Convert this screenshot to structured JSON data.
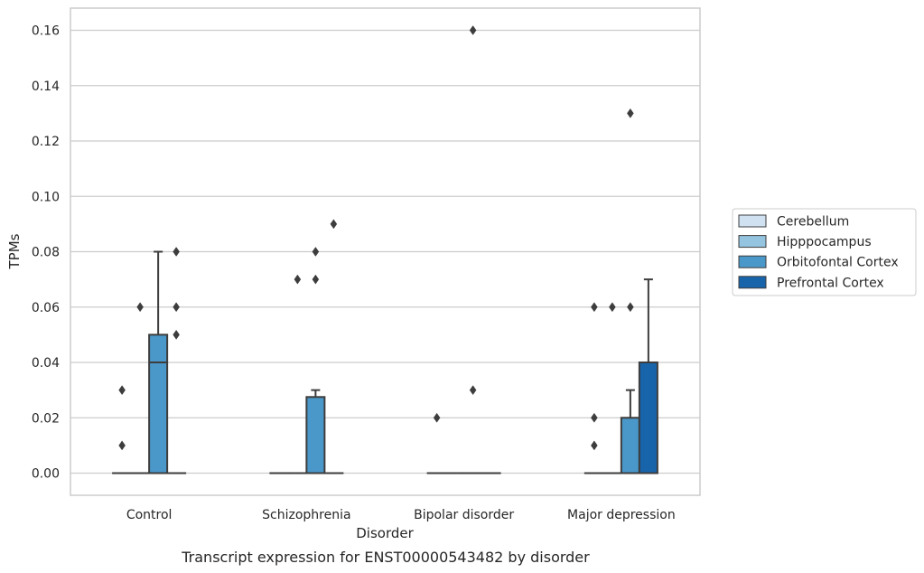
{
  "caption": "Transcript expression for ENST00000543482 by disorder",
  "chart_data": {
    "type": "box",
    "xlabel": "Disorder",
    "ylabel": "TPMs",
    "ylim": [
      -0.008,
      0.168
    ],
    "yticks": [
      0.0,
      0.02,
      0.04,
      0.06,
      0.08,
      0.1,
      0.12,
      0.14,
      0.16
    ],
    "ytick_labels": [
      "0.00",
      "0.02",
      "0.04",
      "0.06",
      "0.08",
      "0.10",
      "0.12",
      "0.14",
      "0.16"
    ],
    "grid": "horizontal",
    "legend_position": "outside-right",
    "categories": [
      "Control",
      "Schizophrenia",
      "Bipolar disorder",
      "Major depression"
    ],
    "series": [
      {
        "name": "Cerebellum",
        "color": "#d0e1f2",
        "boxes": [
          {
            "q1": 0,
            "median": 0,
            "q3": 0,
            "whisker_low": 0,
            "whisker_high": 0,
            "outliers": [
              0.01,
              0.03
            ]
          },
          {
            "q1": 0,
            "median": 0,
            "q3": 0,
            "whisker_low": 0,
            "whisker_high": 0,
            "outliers": []
          },
          {
            "q1": 0,
            "median": 0,
            "q3": 0,
            "whisker_low": 0,
            "whisker_high": 0,
            "outliers": [
              0.02
            ]
          },
          {
            "q1": 0,
            "median": 0,
            "q3": 0,
            "whisker_low": 0,
            "whisker_high": 0,
            "outliers": [
              0.01,
              0.02,
              0.06
            ]
          }
        ]
      },
      {
        "name": "Hipppocampus",
        "color": "#94c4df",
        "boxes": [
          {
            "q1": 0,
            "median": 0,
            "q3": 0,
            "whisker_low": 0,
            "whisker_high": 0,
            "outliers": [
              0.06
            ]
          },
          {
            "q1": 0,
            "median": 0,
            "q3": 0,
            "whisker_low": 0,
            "whisker_high": 0,
            "outliers": [
              0.07
            ]
          },
          {
            "q1": 0,
            "median": 0,
            "q3": 0,
            "whisker_low": 0,
            "whisker_high": 0,
            "outliers": []
          },
          {
            "q1": 0,
            "median": 0,
            "q3": 0,
            "whisker_low": 0,
            "whisker_high": 0,
            "outliers": [
              0.06
            ]
          }
        ]
      },
      {
        "name": "Orbitofontal Cortex",
        "color": "#4a98c9",
        "boxes": [
          {
            "q1": 0,
            "median": 0.04,
            "q3": 0.05,
            "whisker_low": 0,
            "whisker_high": 0.08,
            "outliers": []
          },
          {
            "q1": 0,
            "median": 0,
            "q3": 0.0275,
            "whisker_low": 0,
            "whisker_high": 0.03,
            "outliers": [
              0.07,
              0.08
            ]
          },
          {
            "q1": 0,
            "median": 0,
            "q3": 0,
            "whisker_low": 0,
            "whisker_high": 0,
            "outliers": [
              0.03,
              0.16
            ]
          },
          {
            "q1": 0,
            "median": 0,
            "q3": 0.02,
            "whisker_low": 0,
            "whisker_high": 0.03,
            "outliers": [
              0.06,
              0.13
            ]
          }
        ]
      },
      {
        "name": "Prefrontal Cortex",
        "color": "#1764ab",
        "boxes": [
          {
            "q1": 0,
            "median": 0,
            "q3": 0,
            "whisker_low": 0,
            "whisker_high": 0,
            "outliers": [
              0.05,
              0.06,
              0.08
            ]
          },
          {
            "q1": 0,
            "median": 0,
            "q3": 0,
            "whisker_low": 0,
            "whisker_high": 0,
            "outliers": [
              0.09
            ]
          },
          {
            "q1": 0,
            "median": 0,
            "q3": 0,
            "whisker_low": 0,
            "whisker_high": 0,
            "outliers": []
          },
          {
            "q1": 0,
            "median": 0,
            "q3": 0.04,
            "whisker_low": 0,
            "whisker_high": 0.07,
            "outliers": []
          }
        ]
      }
    ]
  }
}
